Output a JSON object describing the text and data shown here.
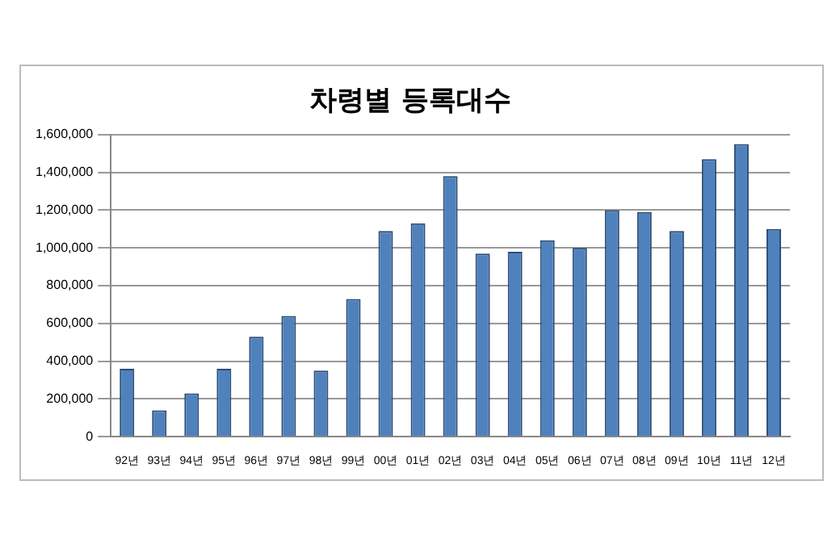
{
  "chart_data": {
    "type": "bar",
    "title": "차령별 등록대수",
    "categories": [
      "92년",
      "93년",
      "94년",
      "95년",
      "96년",
      "97년",
      "98년",
      "99년",
      "00년",
      "01년",
      "02년",
      "03년",
      "04년",
      "05년",
      "06년",
      "07년",
      "08년",
      "09년",
      "10년",
      "11년",
      "12년"
    ],
    "values": [
      360000,
      140000,
      230000,
      360000,
      530000,
      640000,
      350000,
      730000,
      1090000,
      1130000,
      1380000,
      970000,
      980000,
      1040000,
      1000000,
      1200000,
      1190000,
      1090000,
      1470000,
      1550000,
      1100000
    ],
    "color": "#4f81bd",
    "ylim": [
      0,
      1600000
    ],
    "yticks": [
      0,
      {
        "value": 200000,
        "label": "200,000"
      },
      {
        "value": 400000,
        "label": "400,000"
      },
      {
        "value": 600000,
        "label": "600,000"
      },
      {
        "value": 800000,
        "label": "800,000"
      },
      {
        "value": 1000000,
        "label": "1,000,000"
      },
      {
        "value": 1200000,
        "label": "1,200,000"
      },
      {
        "value": 1400000,
        "label": "1,400,000"
      },
      {
        "value": 1600000,
        "label": "1,600,000"
      }
    ],
    "grid": "y",
    "legend": false
  }
}
